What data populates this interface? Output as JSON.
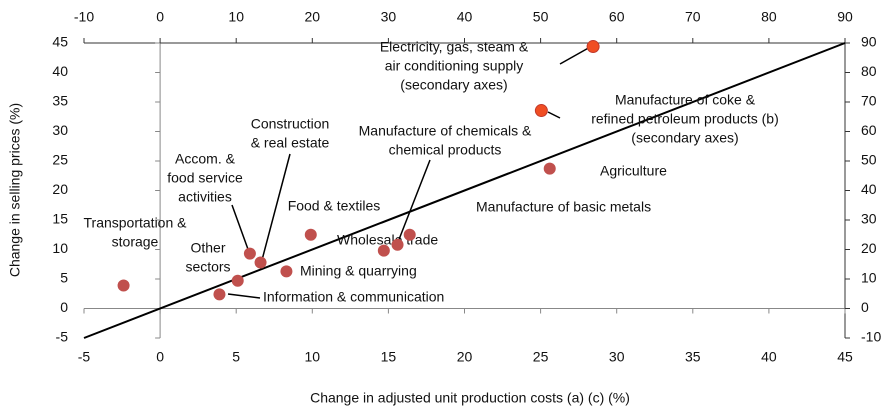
{
  "chart_data": {
    "type": "scatter",
    "xlabel": "Change in adjusted unit production costs (a) (c) (%)",
    "ylabel": "Change in selling prices (%)",
    "xlim": [
      -5,
      45
    ],
    "xticks": [
      -5,
      0,
      5,
      10,
      15,
      20,
      25,
      30,
      35,
      40,
      45
    ],
    "ylim": [
      -5,
      45
    ],
    "yticks": [
      -5,
      0,
      5,
      10,
      15,
      20,
      25,
      30,
      35,
      40,
      45
    ],
    "x2lim": [
      -10,
      90
    ],
    "x2ticks": [
      -10,
      0,
      10,
      20,
      30,
      40,
      50,
      60,
      70,
      80,
      90
    ],
    "y2lim": [
      -10,
      90
    ],
    "y2ticks": [
      -10,
      0,
      10,
      20,
      30,
      40,
      50,
      60,
      70,
      80,
      90
    ],
    "series": [
      {
        "color": "#c0504d",
        "x": [
          -2.4,
          3.9,
          5.1,
          5.9,
          6.6,
          8.3,
          9.9,
          14.7,
          15.6,
          16.4,
          25.6
        ],
        "values": [
          3.9,
          2.4,
          4.7,
          9.3,
          7.8,
          6.3,
          12.5,
          9.8,
          10.8,
          12.5,
          23.7
        ],
        "labels": [
          [
            "Transportation &",
            "storage"
          ],
          [
            "Information & communication"
          ],
          [
            "Other",
            "sectors"
          ],
          [
            "Accom. &",
            "food service",
            "activities"
          ],
          [
            "Construction",
            "& real estate"
          ],
          [
            "Mining & quarrying"
          ],
          [
            "Food & textiles"
          ],
          [
            "Wholesale trade"
          ],
          [
            "Manufacture of chemicals &",
            "chemical products"
          ],
          [
            "Manufacture of basic metals"
          ],
          [
            "Agriculture"
          ]
        ]
      },
      {
        "color": "#f04e23",
        "axis": "y2",
        "x": [
          50.1,
          56.9
        ],
        "values": [
          67.1,
          88.8
        ],
        "labels": [
          [
            "Manufacture of coke &",
            "refined petroleum products (b)",
            "(secondary axes)"
          ],
          [
            "Electricity, gas, steam &",
            "air conditioning supply",
            "(secondary axes)"
          ]
        ]
      }
    ]
  }
}
